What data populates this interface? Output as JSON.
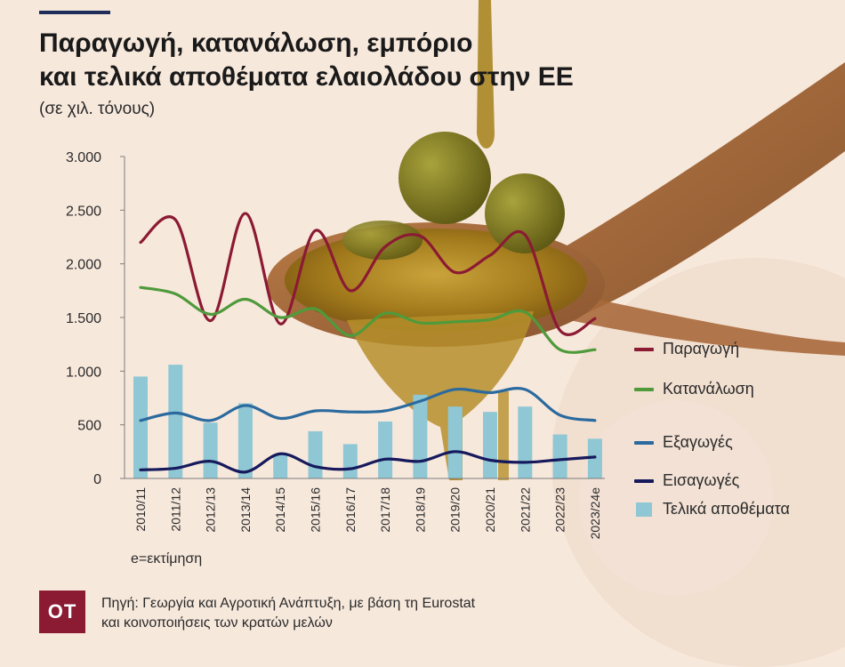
{
  "header": {
    "title_line1": "Παραγωγή, κατανάλωση, εμπόριο",
    "title_line2": "και τελικά αποθέματα ελαιολάδου στην ΕΕ",
    "subtitle": "(σε χιλ. τόνους)"
  },
  "note": "e=εκτίμηση",
  "footer": {
    "logo": "OT",
    "source_line1": "Πηγή: Γεωργία και Αγροτική Ανάπτυξη, με βάση τη Eurostat",
    "source_line2": "και κοινοποιήσεις των κρατών μελών"
  },
  "colors": {
    "production": "#8b1a33",
    "consumption": "#4f9a3b",
    "exports": "#2b6a9e",
    "imports": "#16195c",
    "stocks": "#8fc7d5",
    "background": "#f7e8dc"
  },
  "chart_data": {
    "type": "line",
    "ylim": [
      0,
      3000
    ],
    "yticks": [
      0,
      500,
      1000,
      1500,
      2000,
      2500,
      3000
    ],
    "ytick_labels": [
      "0",
      "500",
      "1.000",
      "1.500",
      "2.000",
      "2.500",
      "3.000"
    ],
    "grid": false,
    "legend_position": "right",
    "categories": [
      "2010/11",
      "2011/12",
      "2012/13",
      "2013/14",
      "2014/15",
      "2015/16",
      "2016/17",
      "2017/18",
      "2018/19",
      "2019/20",
      "2020/21",
      "2021/22",
      "2022/23",
      "2023/24e"
    ],
    "series": [
      {
        "key": "production",
        "name": "Παραγωγή",
        "type": "line",
        "values": [
          2200,
          2410,
          1470,
          2470,
          1440,
          2310,
          1750,
          2160,
          2260,
          1920,
          2080,
          2270,
          1380,
          1490
        ]
      },
      {
        "key": "consumption",
        "name": "Κατανάλωση",
        "type": "line",
        "values": [
          1780,
          1720,
          1530,
          1670,
          1500,
          1580,
          1330,
          1540,
          1450,
          1460,
          1480,
          1550,
          1200,
          1200
        ]
      },
      {
        "key": "exports",
        "name": "Εξαγωγές",
        "type": "line",
        "values": [
          540,
          610,
          540,
          680,
          560,
          630,
          620,
          630,
          720,
          830,
          800,
          830,
          590,
          540
        ]
      },
      {
        "key": "imports",
        "name": "Εισαγωγές",
        "type": "line",
        "values": [
          80,
          95,
          160,
          60,
          230,
          110,
          90,
          180,
          160,
          250,
          170,
          150,
          175,
          200
        ]
      },
      {
        "key": "stocks",
        "name": "Τελικά αποθέματα",
        "type": "bar",
        "values": [
          950,
          1060,
          520,
          700,
          220,
          440,
          320,
          530,
          780,
          670,
          620,
          670,
          410,
          370
        ]
      }
    ]
  }
}
